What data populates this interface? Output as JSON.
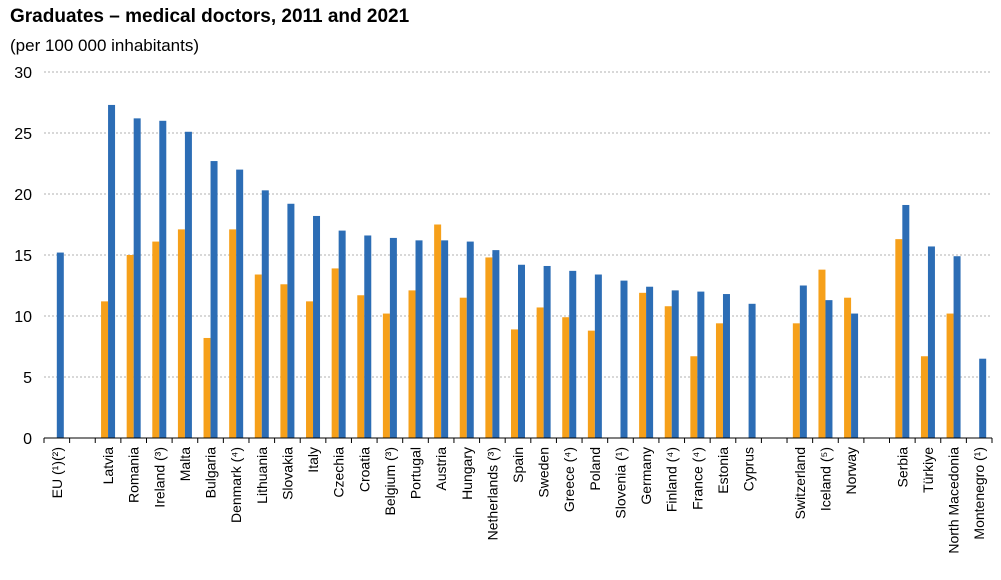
{
  "chart_data": {
    "type": "bar",
    "title": "Graduates – medical doctors, 2011 and 2021",
    "subtitle": "(per 100 000 inhabitants)",
    "xlabel": "",
    "ylabel": "",
    "ylim": [
      0,
      30
    ],
    "yticks": [
      0,
      5,
      10,
      15,
      20,
      25,
      30
    ],
    "grid": true,
    "legend": "none",
    "colors": {
      "2011": "#F6A01A",
      "2021": "#2C6DB5",
      "grid": "#b0b0b0",
      "axis": "#000000"
    },
    "categories": [
      "EU (¹)(²)",
      "",
      "Latvia",
      "Romania",
      "Ireland (³)",
      "Malta",
      "Bulgaria",
      "Denmark (⁴)",
      "Lithuania",
      "Slovakia",
      "Italy",
      "Czechia",
      "Croatia",
      "Belgium (³)",
      "Portugal",
      "Austria",
      "Hungary",
      "Netherlands (³)",
      "Spain",
      "Sweden",
      "Greece (⁴)",
      "Poland",
      "Slovenia (¹)",
      "Germany",
      "Finland (⁴)",
      "France (⁴)",
      "Estonia",
      "Cyprus",
      "",
      "Switzerland",
      "Iceland (⁵)",
      "Norway",
      "",
      "Serbia",
      "Türkiye",
      "North Macedonia",
      "Montenegro (¹)"
    ],
    "series": [
      {
        "name": "2011",
        "values": [
          null,
          null,
          11.2,
          15.0,
          16.1,
          17.1,
          8.2,
          17.1,
          13.4,
          12.6,
          11.2,
          13.9,
          11.7,
          10.2,
          12.1,
          17.5,
          11.5,
          14.8,
          8.9,
          10.7,
          9.9,
          8.8,
          null,
          11.9,
          10.8,
          6.7,
          9.4,
          null,
          null,
          9.4,
          13.8,
          11.5,
          null,
          16.3,
          6.7,
          10.2,
          null
        ]
      },
      {
        "name": "2021",
        "values": [
          15.2,
          null,
          27.3,
          26.2,
          26.0,
          25.1,
          22.7,
          22.0,
          20.3,
          19.2,
          18.2,
          17.0,
          16.6,
          16.4,
          16.2,
          16.2,
          16.1,
          15.4,
          14.2,
          14.1,
          13.7,
          13.4,
          12.9,
          12.4,
          12.1,
          12.0,
          11.8,
          11.0,
          null,
          12.5,
          11.3,
          10.2,
          null,
          19.1,
          15.7,
          14.9,
          6.5
        ]
      }
    ]
  }
}
